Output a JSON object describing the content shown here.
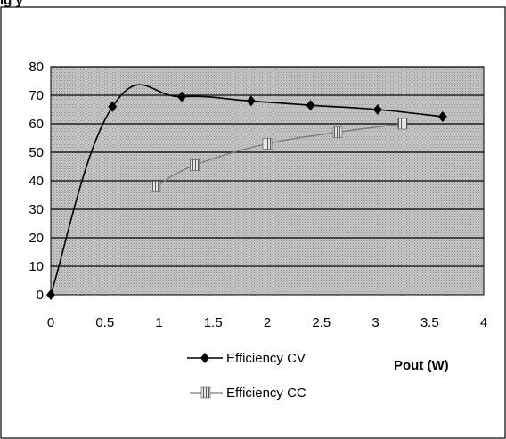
{
  "header_text": "ig                       y",
  "chart_data": {
    "type": "line",
    "xlabel": "Pout (W)",
    "ylabel": "",
    "xlim": [
      0,
      4
    ],
    "ylim": [
      0,
      80
    ],
    "x_ticks": [
      0,
      0.5,
      1,
      1.5,
      2,
      2.5,
      3,
      3.5,
      4
    ],
    "x_tick_labels": [
      "0",
      "0.5",
      "1",
      "1.5",
      "2",
      "2.5",
      "3",
      "3.5",
      "4"
    ],
    "y_ticks": [
      0,
      10,
      20,
      30,
      40,
      50,
      60,
      70,
      80
    ],
    "y_tick_labels": [
      "0",
      "10",
      "20",
      "30",
      "40",
      "50",
      "60",
      "70",
      "80"
    ],
    "grid": "horizontal",
    "legend_position": "bottom",
    "series": [
      {
        "name": "Efficiency CV",
        "marker": "diamond",
        "color": "#000000",
        "x": [
          0,
          0.57,
          1.21,
          1.85,
          2.4,
          3.02,
          3.62
        ],
        "y": [
          0,
          66,
          69.5,
          68,
          66.5,
          65,
          62.5
        ]
      },
      {
        "name": "Efficiency CC",
        "marker": "hatched-square",
        "color": "#7a7a7a",
        "x": [
          0.97,
          1.33,
          2.0,
          2.65,
          3.25
        ],
        "y": [
          38,
          45.5,
          53,
          57,
          60
        ]
      }
    ]
  }
}
